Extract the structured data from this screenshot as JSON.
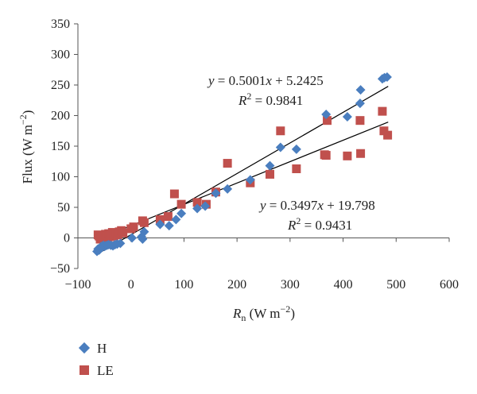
{
  "chart_data": {
    "type": "scatter",
    "title": "",
    "xlabel": {
      "main": "R",
      "sub": "n",
      "unit_pre": " (W m",
      "sup": "−2",
      "unit_post": ")"
    },
    "ylabel": {
      "main": "Flux",
      "unit_pre": " (W m",
      "sup": "−2",
      "unit_post": ")"
    },
    "xlim": [
      -100,
      600
    ],
    "ylim": [
      -50,
      350
    ],
    "xticks": [
      "−100",
      "0",
      "100",
      "200",
      "300",
      "400",
      "500",
      "600"
    ],
    "yticks": [
      "−50",
      "0",
      "50",
      "100",
      "150",
      "200",
      "250",
      "300",
      "350"
    ],
    "grid": false,
    "legend_position": "bottom-left",
    "series": [
      {
        "name": "H",
        "marker": "diamond",
        "color": "#4a7ebf",
        "points": [
          [
            -64,
            -22
          ],
          [
            -62,
            -18
          ],
          [
            -60,
            -20
          ],
          [
            -58,
            -16
          ],
          [
            -56,
            -14
          ],
          [
            -54,
            -15
          ],
          [
            -52,
            -12
          ],
          [
            -50,
            -14
          ],
          [
            -48,
            -13
          ],
          [
            -45,
            -12
          ],
          [
            -42,
            -11
          ],
          [
            -38,
            -12
          ],
          [
            -34,
            -13
          ],
          [
            -30,
            -11
          ],
          [
            -26,
            -10
          ],
          [
            -20,
            -9
          ],
          [
            2,
            0
          ],
          [
            20,
            2
          ],
          [
            22,
            -2
          ],
          [
            25,
            10
          ],
          [
            55,
            22
          ],
          [
            72,
            20
          ],
          [
            85,
            30
          ],
          [
            95,
            40
          ],
          [
            125,
            48
          ],
          [
            140,
            52
          ],
          [
            160,
            73
          ],
          [
            182,
            80
          ],
          [
            225,
            95
          ],
          [
            262,
            118
          ],
          [
            282,
            148
          ],
          [
            312,
            145
          ],
          [
            368,
            202
          ],
          [
            408,
            198
          ],
          [
            432,
            220
          ],
          [
            433,
            242
          ],
          [
            474,
            260
          ],
          [
            478,
            262
          ],
          [
            483,
            263
          ]
        ]
      },
      {
        "name": "LE",
        "marker": "square",
        "color": "#c0504d",
        "points": [
          [
            -62,
            5
          ],
          [
            -60,
            3
          ],
          [
            -58,
            -2
          ],
          [
            -56,
            1
          ],
          [
            -54,
            4
          ],
          [
            -52,
            2
          ],
          [
            -50,
            -1
          ],
          [
            -48,
            6
          ],
          [
            -46,
            3
          ],
          [
            -44,
            0
          ],
          [
            -42,
            7
          ],
          [
            -40,
            2
          ],
          [
            -38,
            4
          ],
          [
            -35,
            9
          ],
          [
            -32,
            3
          ],
          [
            -30,
            6
          ],
          [
            -28,
            8
          ],
          [
            -25,
            5
          ],
          [
            -22,
            10
          ],
          [
            -18,
            12
          ],
          [
            -15,
            8
          ],
          [
            0,
            15
          ],
          [
            5,
            18
          ],
          [
            22,
            28
          ],
          [
            25,
            25
          ],
          [
            55,
            30
          ],
          [
            70,
            35
          ],
          [
            82,
            72
          ],
          [
            95,
            55
          ],
          [
            125,
            58
          ],
          [
            142,
            55
          ],
          [
            160,
            75
          ],
          [
            182,
            122
          ],
          [
            225,
            90
          ],
          [
            262,
            104
          ],
          [
            282,
            175
          ],
          [
            312,
            113
          ],
          [
            365,
            136
          ],
          [
            368,
            135
          ],
          [
            370,
            192
          ],
          [
            408,
            134
          ],
          [
            432,
            192
          ],
          [
            433,
            138
          ],
          [
            474,
            207
          ],
          [
            477,
            175
          ],
          [
            484,
            168
          ]
        ]
      }
    ],
    "fits": [
      {
        "series": "H",
        "slope": 0.5001,
        "intercept": 5.2425,
        "x_range": [
          -65,
          485
        ]
      },
      {
        "series": "LE",
        "slope": 0.3497,
        "intercept": 19.798,
        "x_range": [
          -65,
          485
        ]
      }
    ],
    "annotations": [
      {
        "for": "H",
        "eq_pre": "y",
        "eq_mid": " = 0.5001",
        "eq_x": "x",
        "eq_post": " + 5.2425",
        "r2_pre": "R",
        "r2_sup": "2",
        "r2_post": " = 0.9841"
      },
      {
        "for": "LE",
        "eq_pre": "y",
        "eq_mid": " = 0.3497",
        "eq_x": "x",
        "eq_post": " + 19.798",
        "r2_pre": "R",
        "r2_sup": "2",
        "r2_post": " = 0.9431"
      }
    ]
  }
}
